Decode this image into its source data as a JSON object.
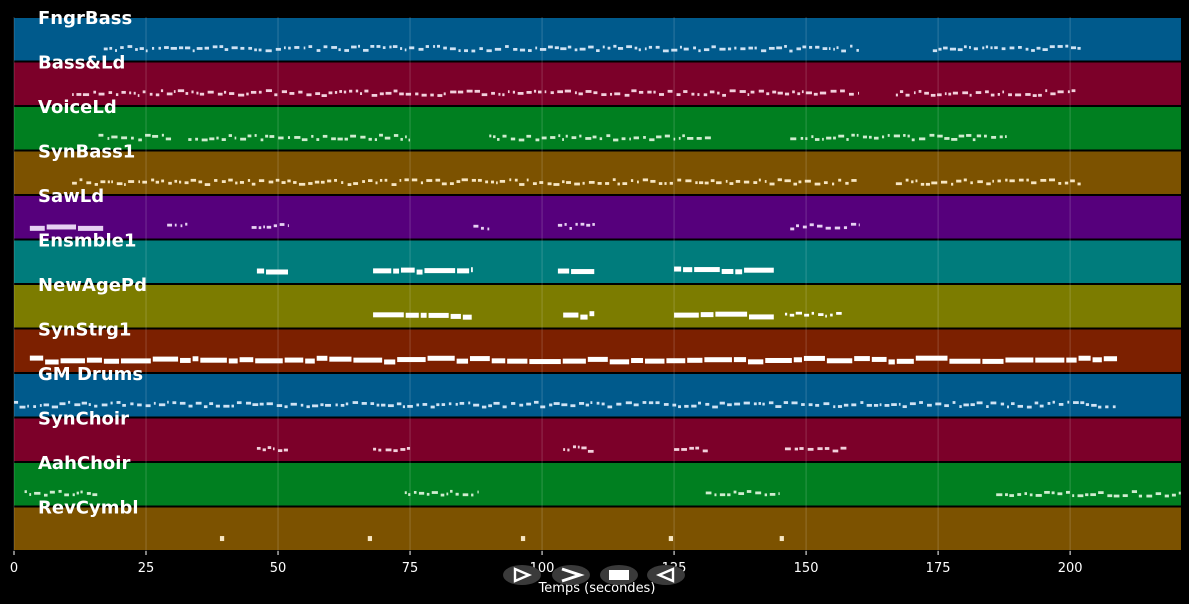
{
  "chart_data": {
    "type": "piano-roll",
    "xlabel": "Temps (secondes)",
    "xlim": [
      0,
      221
    ],
    "xticks": [
      0,
      25,
      50,
      75,
      100,
      125,
      150,
      175,
      200
    ],
    "grid": true,
    "tracks": [
      {
        "name": "FngrBass",
        "color": "#005a8c",
        "note_color": "#cfe2f3",
        "segments": [
          [
            17,
            160,
            "dense"
          ],
          [
            174,
            202,
            "dense"
          ]
        ]
      },
      {
        "name": "Bass&Ld",
        "color": "#7c0029",
        "note_color": "#f2d0dc",
        "segments": [
          [
            11,
            160,
            "dense"
          ],
          [
            167,
            201,
            "dense"
          ]
        ]
      },
      {
        "name": "VoiceLd",
        "color": "#007f20",
        "note_color": "#cfeccf",
        "segments": [
          [
            16,
            30,
            "dense"
          ],
          [
            33,
            75,
            "dense"
          ],
          [
            90,
            132,
            "dense"
          ],
          [
            147,
            188,
            "dense"
          ]
        ]
      },
      {
        "name": "SynBass1",
        "color": "#7c5200",
        "note_color": "#f7e6c2",
        "segments": [
          [
            11,
            160,
            "dense"
          ],
          [
            167,
            202,
            "dense"
          ]
        ]
      },
      {
        "name": "SawLd",
        "color": "#56007c",
        "note_color": "#e6d0f2",
        "segments": [
          [
            3,
            17,
            "bars"
          ],
          [
            29,
            33,
            "dense"
          ],
          [
            45,
            52,
            "dense"
          ],
          [
            87,
            90,
            "dense"
          ],
          [
            103,
            110,
            "dense"
          ],
          [
            147,
            160,
            "dense"
          ]
        ]
      },
      {
        "name": "Ensmble1",
        "color": "#007c7c",
        "note_color": "#ffffff",
        "segments": [
          [
            46,
            52,
            "bars"
          ],
          [
            68,
            87,
            "bars"
          ],
          [
            103,
            110,
            "bars"
          ],
          [
            125,
            144,
            "bars"
          ]
        ]
      },
      {
        "name": "NewAgePd",
        "color": "#7c7c00",
        "note_color": "#ffffff",
        "segments": [
          [
            68,
            87,
            "bars"
          ],
          [
            104,
            110,
            "bars"
          ],
          [
            125,
            144,
            "bars"
          ],
          [
            146,
            157,
            "dense"
          ]
        ]
      },
      {
        "name": "SynStrg1",
        "color": "#7c2000",
        "note_color": "#ffffff",
        "segments": [
          [
            3,
            209,
            "bars"
          ]
        ]
      },
      {
        "name": "GM Drums",
        "color": "#005a8c",
        "note_color": "#cfe2f3",
        "segments": [
          [
            0,
            209,
            "dense"
          ]
        ]
      },
      {
        "name": "SynChoir",
        "color": "#7c0029",
        "note_color": "#f2d0dc",
        "segments": [
          [
            46,
            52,
            "dense"
          ],
          [
            68,
            75,
            "dense"
          ],
          [
            104,
            110,
            "dense"
          ],
          [
            125,
            132,
            "dense"
          ],
          [
            146,
            158,
            "dense"
          ]
        ]
      },
      {
        "name": "AahChoir",
        "color": "#007f20",
        "note_color": "#cfeccf",
        "segments": [
          [
            2,
            16,
            "dense"
          ],
          [
            74,
            88,
            "dense"
          ],
          [
            131,
            145,
            "dense"
          ],
          [
            186,
            221,
            "dense"
          ]
        ]
      },
      {
        "name": "RevCymbl",
        "color": "#7c5200",
        "note_color": "#f7e6c2",
        "segments": [
          [
            39,
            39.8,
            "dot"
          ],
          [
            67,
            67.8,
            "dot"
          ],
          [
            96,
            96.8,
            "dot"
          ],
          [
            124,
            124.8,
            "dot"
          ],
          [
            145,
            145.8,
            "dot"
          ]
        ]
      }
    ]
  },
  "controls": [
    {
      "name": "play",
      "icon": "play-icon"
    },
    {
      "name": "fast-forward",
      "icon": "fast-forward-icon"
    },
    {
      "name": "stop",
      "icon": "stop-icon"
    },
    {
      "name": "rewind",
      "icon": "rewind-icon"
    }
  ]
}
